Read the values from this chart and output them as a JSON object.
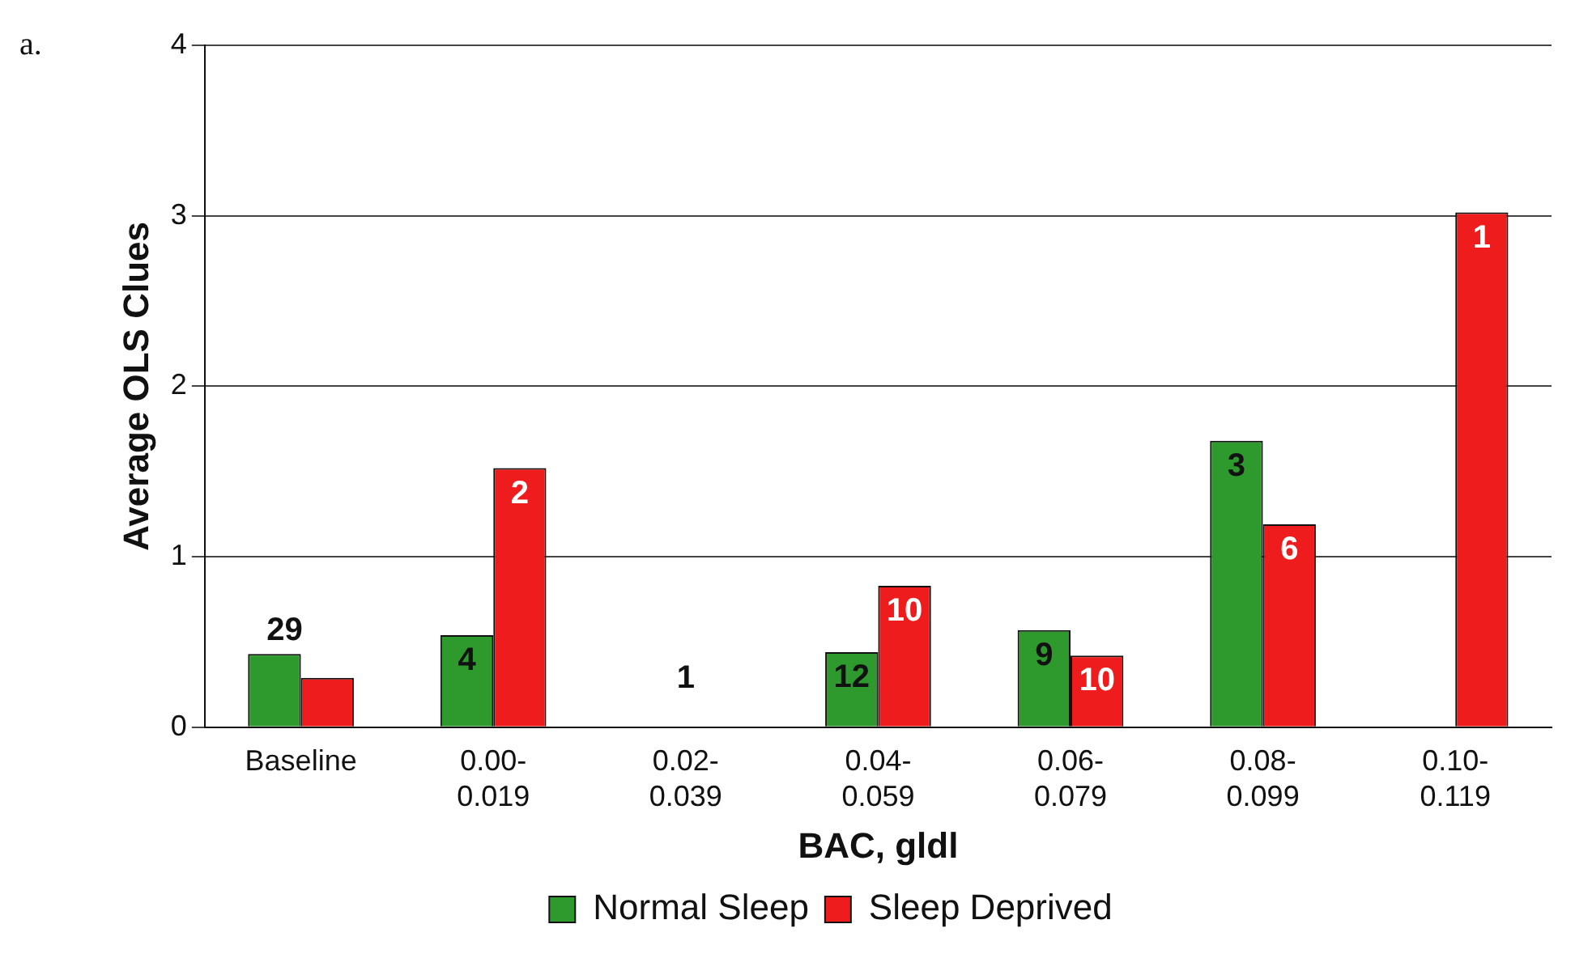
{
  "chart_data": {
    "type": "bar",
    "xlabel": "BAC, gldl",
    "ylabel": "Average OLS Clues",
    "categories": [
      "Baseline",
      "0.00-\n0.019",
      "0.02-\n0.039",
      "0.04-\n0.059",
      "0.06-\n0.079",
      "0.08-\n0.099",
      "0.10-\n0.119"
    ],
    "series": [
      {
        "name": "Normal Sleep",
        "color": "#2e9a2e",
        "values": [
          0.43,
          0.54,
          0,
          0.44,
          0.57,
          1.68,
          null
        ]
      },
      {
        "name": "Sleep Deprived",
        "color": "#ee1c1c",
        "values": [
          0.29,
          1.52,
          0,
          0.83,
          0.42,
          1.19,
          3.02
        ]
      }
    ],
    "ylim": [
      0,
      4
    ],
    "yticks": [
      0,
      1,
      2,
      3,
      4
    ],
    "grid": "y",
    "legend": "bottom",
    "annotations": [
      "a.",
      "29",
      {
        "text": "4",
        "x": "0.00-\n0.019",
        "y": 0.54
      },
      {
        "text": "2",
        "x": "0.00-\n0.019",
        "y": 1.52
      },
      {
        "text": "1",
        "x": "0.02-\n0.039",
        "y": 0
      },
      {
        "text": "12",
        "x": "0.04-\n0.059",
        "y": 0.44
      },
      {
        "text": "10",
        "x": "0.04-\n0.059",
        "y": 0.83
      },
      {
        "text": "9",
        "x": "0.06-\n0.079",
        "y": 0.57
      },
      {
        "text": "10",
        "x": "0.06-\n0.079",
        "y": 0.42
      },
      {
        "text": "3",
        "x": "0.08-\n0.099",
        "y": 1.68
      },
      {
        "text": "6",
        "x": "0.08-\n0.099",
        "y": 1.19
      },
      {
        "text": "1",
        "x": "0.10-\n0.119",
        "y": 3.02
      }
    ]
  }
}
